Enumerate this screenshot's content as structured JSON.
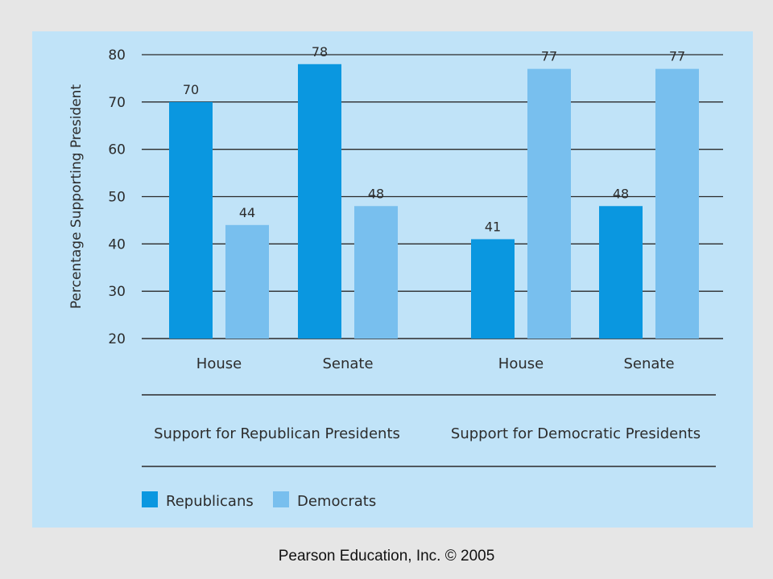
{
  "chart_data": {
    "type": "bar",
    "ylabel": "Percentage Supporting President",
    "ylim": [
      20,
      80
    ],
    "yticks": [
      80,
      70,
      60,
      50,
      40,
      30,
      20
    ],
    "grid": true,
    "groups": [
      {
        "label": "Support for Republican Presidents",
        "categories": [
          "House",
          "Senate"
        ],
        "series": [
          {
            "name": "Republicans",
            "values": [
              70,
              78
            ]
          },
          {
            "name": "Democrats",
            "values": [
              44,
              48
            ]
          }
        ]
      },
      {
        "label": "Support for Democratic Presidents",
        "categories": [
          "House",
          "Senate"
        ],
        "series": [
          {
            "name": "Republicans",
            "values": [
              41,
              48
            ]
          },
          {
            "name": "Democrats",
            "values": [
              77,
              77
            ]
          }
        ]
      }
    ],
    "legend": {
      "placement": "bottom-left",
      "entries": [
        {
          "name": "Republicans",
          "color": "#0a97e0"
        },
        {
          "name": "Democrats",
          "color": "#78bfee"
        }
      ]
    },
    "colors": {
      "Republicans": "#0a97e0",
      "Democrats": "#78bfee",
      "background": "#c0e3f8",
      "grid": "#2a2a2a"
    }
  },
  "footer": {
    "text": "Pearson Education, Inc. © 2005"
  }
}
